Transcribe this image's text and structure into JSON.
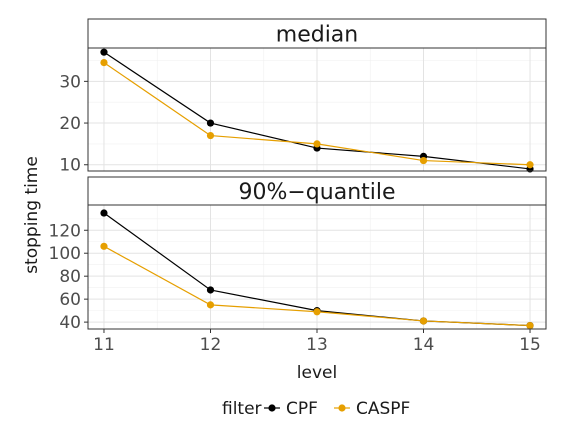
{
  "chart_data": [
    {
      "type": "line",
      "title": "median",
      "xlabel": "level",
      "ylabel": "stopping time",
      "x": [
        11,
        12,
        13,
        14,
        15
      ],
      "xlim": [
        10.85,
        15.15
      ],
      "ylim": [
        8.5,
        38
      ],
      "yticks": [
        10,
        20,
        30
      ],
      "grid": true,
      "series": [
        {
          "name": "CPF",
          "color": "#000000",
          "values": [
            37,
            20,
            14,
            12,
            9
          ]
        },
        {
          "name": "CASPF",
          "color": "#E69F00",
          "values": [
            34.5,
            17,
            15,
            11,
            10
          ]
        }
      ]
    },
    {
      "type": "line",
      "title": "90%−quantile",
      "xlabel": "level",
      "ylabel": "stopping time",
      "x": [
        11,
        12,
        13,
        14,
        15
      ],
      "xlim": [
        10.85,
        15.15
      ],
      "ylim": [
        34,
        142
      ],
      "yticks": [
        40,
        60,
        80,
        100,
        120
      ],
      "grid": true,
      "series": [
        {
          "name": "CPF",
          "color": "#000000",
          "values": [
            135,
            68,
            50,
            41,
            37
          ]
        },
        {
          "name": "CASPF",
          "color": "#E69F00",
          "values": [
            106,
            55,
            49,
            41,
            37
          ]
        }
      ]
    }
  ],
  "legend": {
    "title": "filter",
    "position": "bottom",
    "items": [
      {
        "label": "CPF",
        "color": "#000000"
      },
      {
        "label": "CASPF",
        "color": "#E69F00"
      }
    ]
  },
  "x_tick_labels": [
    "11",
    "12",
    "13",
    "14",
    "15"
  ],
  "xlabel": "level",
  "ylabel": "stopping time"
}
